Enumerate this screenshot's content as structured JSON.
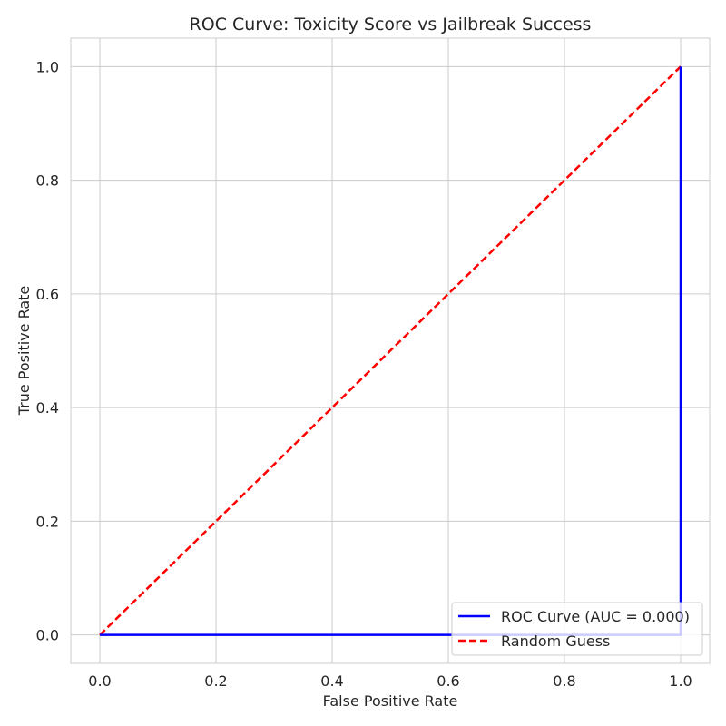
{
  "chart_data": {
    "type": "line",
    "title": "ROC Curve: Toxicity Score vs Jailbreak Success",
    "xlabel": "False Positive Rate",
    "ylabel": "True Positive Rate",
    "xlim": [
      -0.05,
      1.05
    ],
    "ylim": [
      -0.05,
      1.05
    ],
    "xticks": [
      "0.0",
      "0.2",
      "0.4",
      "0.6",
      "0.8",
      "1.0"
    ],
    "yticks": [
      "0.0",
      "0.2",
      "0.4",
      "0.6",
      "0.8",
      "1.0"
    ],
    "grid": true,
    "legend_position": "lower-right",
    "series": [
      {
        "name": "ROC Curve (AUC = 0.000)",
        "color": "#0000ff",
        "style": "solid",
        "x": [
          0.0,
          1.0,
          1.0
        ],
        "y": [
          0.0,
          0.0,
          1.0
        ]
      },
      {
        "name": "Random Guess",
        "color": "#ff0000",
        "style": "dashed",
        "x": [
          0.0,
          1.0
        ],
        "y": [
          0.0,
          1.0
        ]
      }
    ]
  }
}
